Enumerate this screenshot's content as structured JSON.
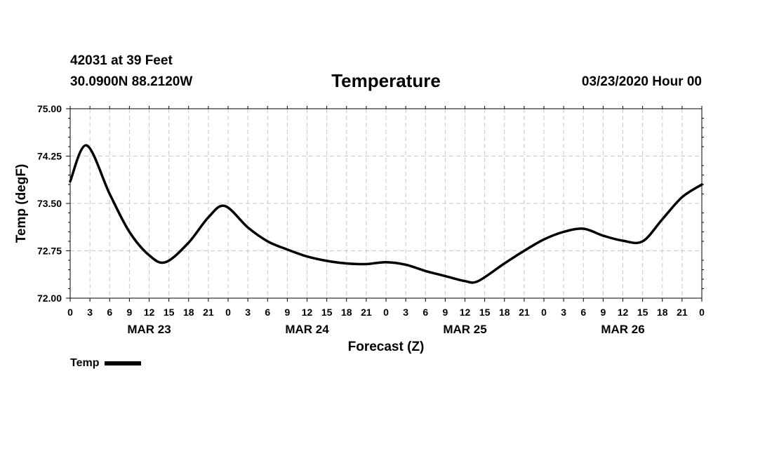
{
  "header": {
    "station": "42031 at 39 Feet",
    "coords": "30.0900N 88.2120W",
    "datetime": "03/23/2020 Hour 00"
  },
  "chart_data": {
    "type": "line",
    "title": "Temperature",
    "xlabel": "Forecast (Z)",
    "ylabel": "Temp (degF)",
    "ylim": [
      72.0,
      75.0
    ],
    "yticks": [
      "72.00",
      "72.75",
      "73.50",
      "74.25",
      "75.00"
    ],
    "xlim": [
      0,
      96
    ],
    "xticks": [
      "0",
      "3",
      "6",
      "9",
      "12",
      "15",
      "18",
      "21",
      "0",
      "3",
      "6",
      "9",
      "12",
      "15",
      "18",
      "21",
      "0",
      "3",
      "6",
      "9",
      "12",
      "15",
      "18",
      "21",
      "0",
      "3",
      "6",
      "9",
      "12",
      "15",
      "18",
      "21",
      "0"
    ],
    "day_labels": [
      {
        "label": "MAR 23",
        "hour": 12
      },
      {
        "label": "MAR 24",
        "hour": 36
      },
      {
        "label": "MAR 25",
        "hour": 60
      },
      {
        "label": "MAR 26",
        "hour": 84
      }
    ],
    "grid": true,
    "legend": "bottom-left",
    "series": [
      {
        "name": "Temp",
        "color": "#000000",
        "x": [
          0,
          2.5,
          6,
          9,
          12,
          14.5,
          18,
          21,
          23.5,
          27,
          30,
          33,
          36,
          39,
          42,
          45,
          48,
          51,
          54,
          57,
          60,
          62,
          66,
          69,
          72,
          75,
          78,
          81,
          84,
          87,
          90,
          93,
          96
        ],
        "y": [
          73.85,
          74.42,
          73.65,
          73.05,
          72.68,
          72.57,
          72.88,
          73.28,
          73.46,
          73.12,
          72.9,
          72.77,
          72.66,
          72.59,
          72.55,
          72.54,
          72.57,
          72.53,
          72.43,
          72.35,
          72.27,
          72.27,
          72.55,
          72.75,
          72.93,
          73.05,
          73.1,
          72.99,
          72.91,
          72.9,
          73.25,
          73.6,
          73.8
        ]
      }
    ]
  }
}
